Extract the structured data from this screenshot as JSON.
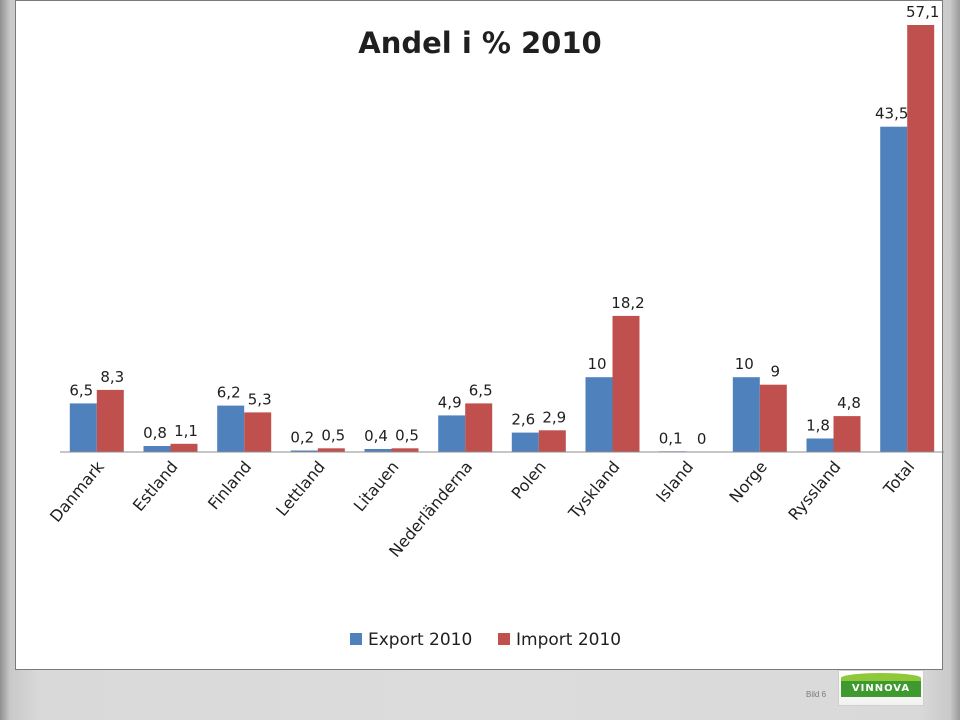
{
  "slide": {
    "slide_number": "Bild 6",
    "logo_text": "VINNOVA"
  },
  "colors": {
    "export": "#4F81BD",
    "import": "#C0504D",
    "baseline": "#8c8c8c"
  },
  "chart_data": {
    "type": "bar",
    "title": "Andel i % 2010",
    "categories": [
      "Danmark",
      "Estland",
      "Finland",
      "Lettland",
      "Litauen",
      "Nederländerna",
      "Polen",
      "Tyskland",
      "Island",
      "Norge",
      "Ryssland",
      "Total"
    ],
    "series": [
      {
        "name": "Export 2010",
        "values": [
          6.5,
          0.8,
          6.2,
          0.2,
          0.4,
          4.9,
          2.6,
          10,
          0.1,
          10,
          1.8,
          43.5
        ],
        "labels": [
          "6,5",
          "0,8",
          "6,2",
          "0,2",
          "0,4",
          "4,9",
          "2,6",
          "10",
          "0,1",
          "10",
          "1,8",
          "43,5"
        ]
      },
      {
        "name": "Import 2010",
        "values": [
          8.3,
          1.1,
          5.3,
          0.5,
          0.5,
          6.5,
          2.9,
          18.2,
          0,
          9,
          4.8,
          57.1
        ],
        "labels": [
          "8,3",
          "1,1",
          "5,3",
          "0,5",
          "0,5",
          "6,5",
          "2,9",
          "18,2",
          "0",
          "9",
          "4,8",
          "57,1"
        ]
      }
    ],
    "xlabel": "",
    "ylabel": "",
    "ylim": [
      0,
      57.1
    ],
    "grid": false,
    "legend": "bottom",
    "x_tick_rotation": "angled"
  }
}
